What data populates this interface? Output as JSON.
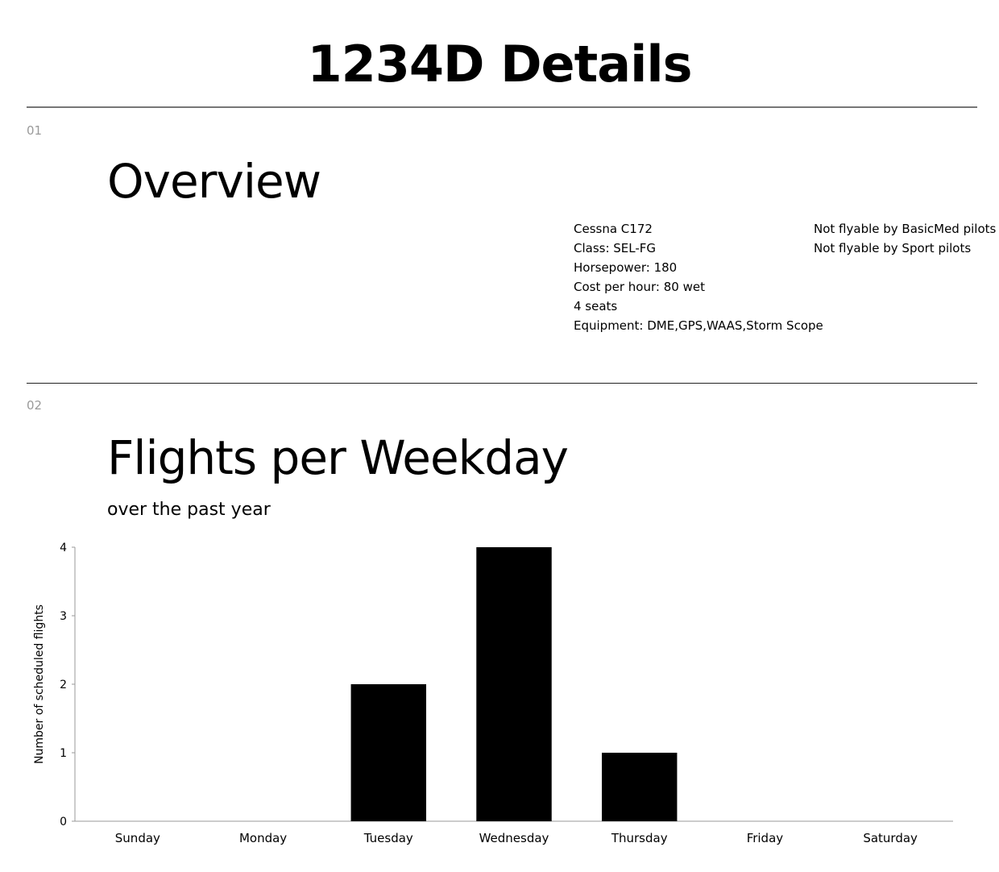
{
  "header": {
    "title": "1234D Details"
  },
  "overview": {
    "number": "01",
    "title": "Overview",
    "specs": [
      "Cessna C172",
      "Class: SEL-FG",
      "Horsepower: 180",
      "Cost per hour: 80 wet",
      "4 seats",
      "Equipment: DME,GPS,WAAS,Storm Scope"
    ],
    "restrictions": [
      "Not flyable by BasicMed pilots",
      "Not flyable by Sport pilots"
    ]
  },
  "flights": {
    "number": "02",
    "title": "Flights per Weekday",
    "subtitle": "over the past year"
  },
  "chart_data": {
    "type": "bar",
    "categories": [
      "Sunday",
      "Monday",
      "Tuesday",
      "Wednesday",
      "Thursday",
      "Friday",
      "Saturday"
    ],
    "values": [
      0,
      0,
      2,
      4,
      1,
      0,
      0
    ],
    "xlabel": "",
    "ylabel": "Number of scheduled flights",
    "ylim": [
      0,
      4
    ],
    "yticks": [
      0,
      1,
      2,
      3,
      4
    ],
    "grid": false,
    "bar_color": "#000000"
  }
}
